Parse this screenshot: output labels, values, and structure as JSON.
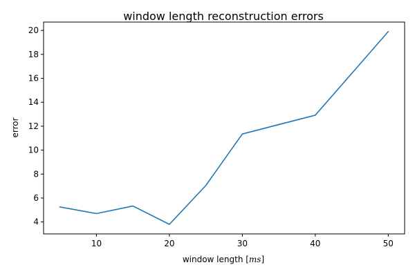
{
  "chart_data": {
    "type": "line",
    "title": "window length reconstruction errors",
    "xlabel": {
      "text": "window length ",
      "bracket_open": "[",
      "unit": "ms",
      "bracket_close": "]"
    },
    "ylabel": "error",
    "x": [
      5,
      10,
      15,
      20,
      25,
      30,
      40,
      50
    ],
    "series": [
      {
        "values": [
          5.25,
          4.7,
          5.33,
          3.8,
          7.05,
          11.35,
          12.92,
          19.9
        ],
        "color": "#1f77b4"
      }
    ],
    "xlim": [
      2.75,
      52.25
    ],
    "ylim": [
      3.0,
      20.7
    ],
    "xticks": [
      10,
      20,
      30,
      40,
      50
    ],
    "yticks": [
      4,
      6,
      8,
      10,
      12,
      14,
      16,
      18,
      20
    ],
    "grid": false,
    "legend": "none"
  }
}
